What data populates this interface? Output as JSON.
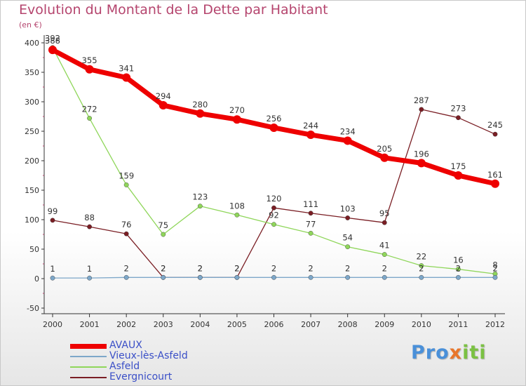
{
  "header": {
    "title": "Evolution du Montant de la Dette par Habitant",
    "subtitle": "(en €)"
  },
  "logo": {
    "text": "Proxiti",
    "colors": [
      "#4a90d9",
      "#e8762b",
      "#7bc143"
    ]
  },
  "chart_data": {
    "type": "line",
    "x": [
      "2000",
      "2001",
      "2002",
      "2003",
      "2004",
      "2005",
      "2006",
      "2007",
      "2008",
      "2009",
      "2010",
      "2011",
      "2012"
    ],
    "ylim": [
      -50,
      400
    ],
    "yticks": [
      -50,
      0,
      50,
      100,
      150,
      200,
      250,
      300,
      350,
      400
    ],
    "grid": false,
    "legend_position": "bottom-left",
    "series": [
      {
        "name": "Evergnicourt",
        "color": "#7a1e24",
        "values": [
          99,
          88,
          76,
          2,
          2,
          2,
          120,
          111,
          103,
          95,
          287,
          273,
          245
        ],
        "labels": [
          "99",
          "88",
          "76",
          "2",
          "2",
          "2",
          "120",
          "111",
          "103",
          "95",
          "287",
          "273",
          "245"
        ]
      },
      {
        "name": "Asfeld",
        "color": "#8fd65a",
        "values": [
          392,
          272,
          159,
          75,
          123,
          108,
          92,
          77,
          54,
          41,
          22,
          16,
          8
        ],
        "labels": [
          "392",
          "272",
          "159",
          "75",
          "123",
          "108",
          "92",
          "77",
          "54",
          "41",
          "22",
          "16",
          "8"
        ]
      },
      {
        "name": "Vieux-lès-Asfeld",
        "color": "#7da7c9",
        "values": [
          1,
          1,
          2,
          2,
          2,
          2,
          2,
          2,
          2,
          2,
          2,
          2,
          2
        ],
        "labels": [
          "1",
          "1",
          "2",
          "2",
          "2",
          "2",
          "2",
          "2",
          "2",
          "2",
          "2",
          "2",
          "2"
        ]
      },
      {
        "name": "AVAUX",
        "color": "#ee0000",
        "values": [
          388,
          355,
          341,
          294,
          280,
          270,
          256,
          244,
          234,
          205,
          196,
          175,
          161
        ],
        "labels": [
          "388",
          "355",
          "341",
          "294",
          "280",
          "270",
          "256",
          "244",
          "234",
          "205",
          "196",
          "175",
          "161"
        ]
      }
    ],
    "legend": [
      "AVAUX",
      "Vieux-lès-Asfeld",
      "Asfeld",
      "Evergnicourt"
    ]
  }
}
